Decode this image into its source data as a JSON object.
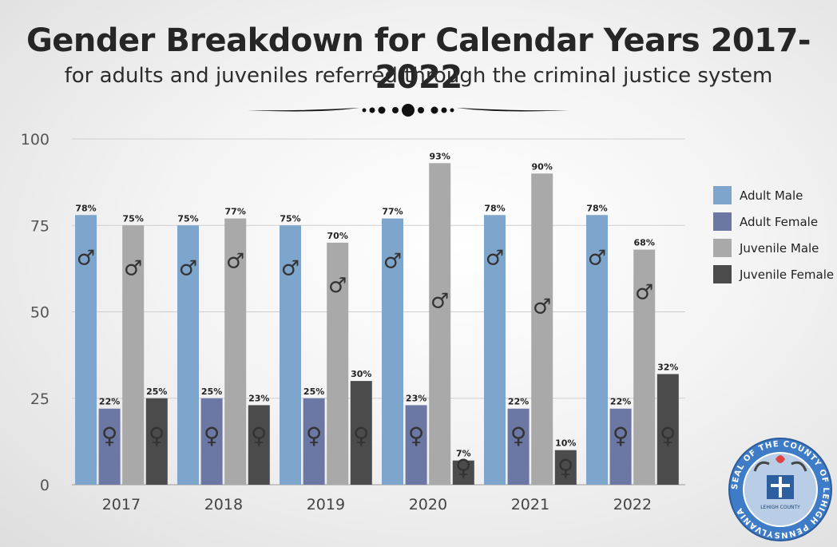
{
  "chart_data": {
    "type": "bar",
    "title": "Gender Breakdown for Calendar Years 2017-2022",
    "subtitle": "for adults and juveniles referred through the criminal justice system",
    "categories": [
      "2017",
      "2018",
      "2019",
      "2020",
      "2021",
      "2022"
    ],
    "series": [
      {
        "name": "Adult Male",
        "color": "#7ea5cc",
        "symbol": "male",
        "values": [
          78,
          75,
          75,
          77,
          78,
          78
        ],
        "labels": [
          "78%",
          "75%",
          "75%",
          "77%",
          "78%",
          "78%"
        ]
      },
      {
        "name": "Adult Female",
        "color": "#6c77a3",
        "symbol": "female",
        "values": [
          22,
          25,
          25,
          23,
          22,
          22
        ],
        "labels": [
          "22%",
          "25%",
          "25%",
          "23%",
          "22%",
          "22%"
        ]
      },
      {
        "name": "Juvenile Male",
        "color": "#a9a9a9",
        "symbol": "male",
        "values": [
          75,
          77,
          70,
          93,
          90,
          68
        ],
        "labels": [
          "75%",
          "77%",
          "70%",
          "93%",
          "90%",
          "68%"
        ]
      },
      {
        "name": "Juvenile Female",
        "color": "#4b4b4b",
        "symbol": "female",
        "values": [
          25,
          23,
          30,
          7,
          10,
          32
        ],
        "labels": [
          "25%",
          "23%",
          "30%",
          "7%",
          "10%",
          "32%"
        ]
      }
    ],
    "ylim": [
      0,
      100
    ],
    "yticks": [
      "0",
      "25",
      "50",
      "75",
      "100"
    ],
    "grid": true,
    "legend": "right",
    "symbols": {
      "male": "♂",
      "female": "♀"
    }
  },
  "seal": {
    "text": "SEAL OF THE COUNTY OF LEHIGH PENNSYLVANIA",
    "inner_text": "LEHIGH COUNTY"
  }
}
